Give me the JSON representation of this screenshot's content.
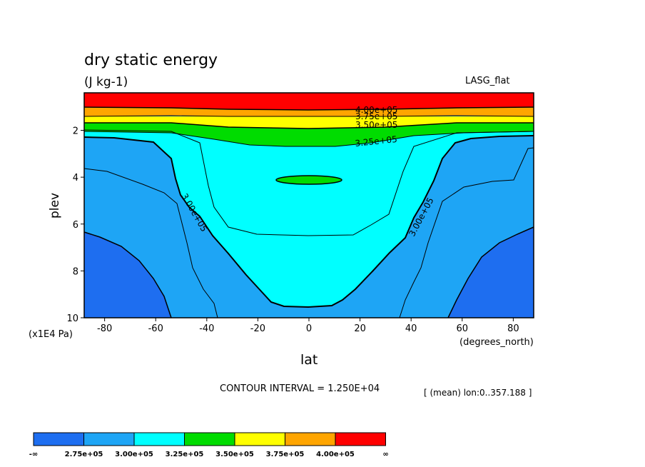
{
  "chart_data": {
    "type": "contour",
    "title": "dry static energy",
    "units": "(J kg-1)",
    "model_label": "LASG_flat",
    "xlabel": "lat",
    "xunits": "(degrees_north)",
    "ylabel": "plev",
    "yunits": "(x1E4 Pa)",
    "xlim": [
      -88,
      88
    ],
    "ylim": [
      10,
      0.4
    ],
    "x_ticks": [
      "-80",
      "-60",
      "-40",
      "-20",
      "0",
      "20",
      "40",
      "60",
      "80"
    ],
    "x_tick_values": [
      -80,
      -60,
      -40,
      -20,
      0,
      20,
      40,
      60,
      80
    ],
    "y_ticks": [
      "2",
      "4",
      "6",
      "8",
      "10"
    ],
    "y_tick_values": [
      2,
      4,
      6,
      8,
      10
    ],
    "contour_interval_text": "CONTOUR INTERVAL = 1.250E+04",
    "mean_text": "[ (mean) lon:0..357.188 ]",
    "contour_labels": [
      "4.00e+05",
      "3.75e+05",
      "3.50e+05",
      "3.25e+05",
      "3.00e+05",
      "3.00e+05"
    ],
    "colors": {
      "below_2.75e5": "#1e6ef0",
      "2.75e5_3.00e5": "#1ea5f5",
      "3.00e5_3.25e5": "#00ffff",
      "3.25e5_3.50e5": "#00dc00",
      "3.50e5_3.75e5": "#ffff00",
      "3.75e5_4.00e5": "#ffa500",
      "above_4.00e5": "#ff0000"
    },
    "legend": {
      "labels": [
        "-∞",
        "2.75e+05",
        "3.00e+05",
        "3.25e+05",
        "3.50e+05",
        "3.75e+05",
        "4.00e+05",
        "∞"
      ],
      "colors": [
        "#1e6ef0",
        "#1ea5f5",
        "#00ffff",
        "#00dc00",
        "#ffff00",
        "#ffa500",
        "#ff0000"
      ]
    }
  }
}
